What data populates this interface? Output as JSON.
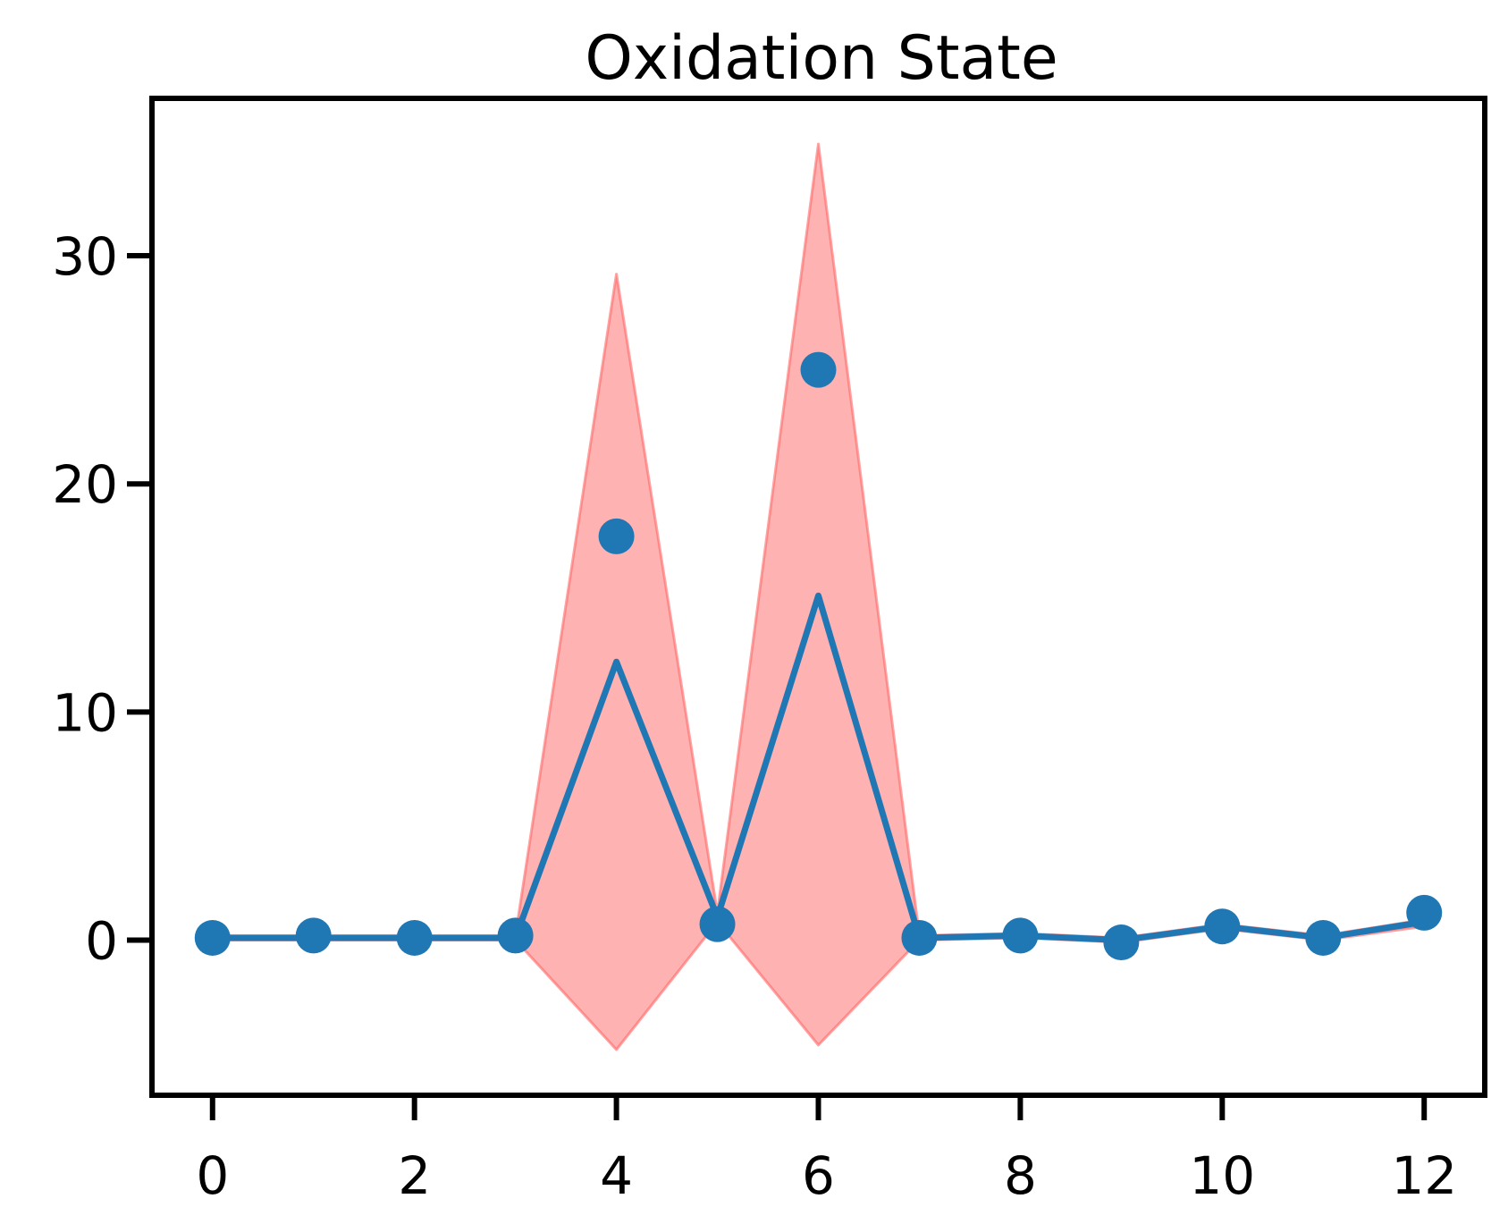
{
  "chart_data": {
    "type": "line",
    "title": "Oxidation State",
    "xlabel": "",
    "ylabel": "",
    "xlim": [
      -0.6,
      12.6
    ],
    "ylim": [
      -6.8,
      36.9
    ],
    "x_ticks": [
      0,
      2,
      4,
      6,
      8,
      10,
      12
    ],
    "y_ticks": [
      0,
      10,
      20,
      30
    ],
    "grid": false,
    "legend": "none",
    "series": [
      {
        "kind": "line",
        "x": [
          0,
          1,
          2,
          3,
          4,
          5,
          6,
          7,
          8,
          9,
          10,
          11,
          12
        ],
        "values": [
          0.1,
          0.1,
          0.1,
          0.1,
          12.2,
          1.0,
          15.1,
          0.1,
          0.2,
          0.0,
          0.6,
          0.1,
          0.8
        ]
      },
      {
        "kind": "band",
        "x": [
          0,
          1,
          2,
          3,
          4,
          5,
          6,
          7,
          8,
          9,
          10,
          11,
          12
        ],
        "lower": [
          0.0,
          0.0,
          0.0,
          0.0,
          -4.8,
          0.8,
          -4.6,
          0.0,
          0.1,
          -0.1,
          0.5,
          0.0,
          0.6
        ],
        "upper": [
          0.2,
          0.2,
          0.2,
          0.2,
          29.2,
          1.2,
          34.9,
          0.2,
          0.3,
          0.1,
          0.7,
          0.2,
          0.9
        ]
      },
      {
        "kind": "scatter",
        "x": [
          0,
          1,
          2,
          3,
          4,
          5,
          6,
          7,
          8,
          9,
          10,
          11,
          12
        ],
        "values": [
          0.1,
          0.2,
          0.1,
          0.2,
          17.7,
          0.7,
          25.0,
          0.1,
          0.2,
          -0.1,
          0.6,
          0.1,
          1.2
        ]
      }
    ],
    "colors": {
      "line": "#1f77b4",
      "band": "#ff6666",
      "scatter": "#1f77b4",
      "axes": "#000000"
    }
  }
}
